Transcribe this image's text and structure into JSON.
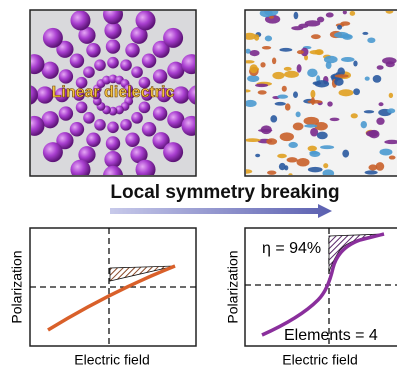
{
  "panels": [
    {
      "label": "Linear dielectric"
    }
  ],
  "caption": "Local symmetry breaking",
  "plots": [
    {
      "y_label": "Polarization",
      "x_label": "Electric field"
    },
    {
      "y_label": "Polarization",
      "x_label": "Electric field",
      "annotation": "η = 94%",
      "note": "Elements = 4"
    }
  ]
}
